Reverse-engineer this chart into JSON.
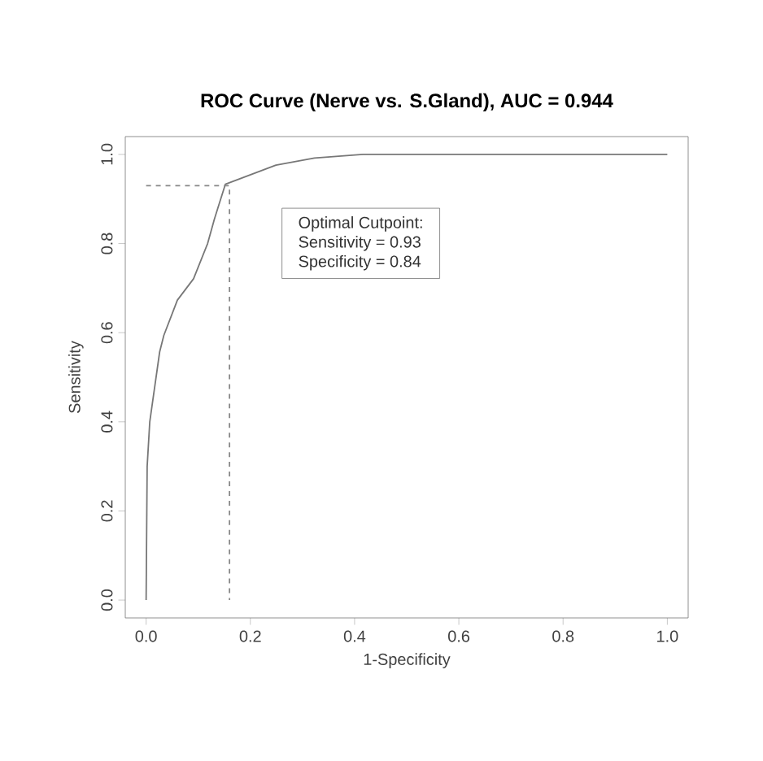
{
  "chart_data": {
    "type": "line",
    "title": "ROC Curve (Nerve vs. S.Gland), AUC = 0.944",
    "xlabel": "1-Specificity",
    "ylabel": "Sensitivity",
    "xlim": [
      -0.04,
      1.04
    ],
    "ylim": [
      -0.04,
      1.04
    ],
    "xticks": [
      {
        "value": 0,
        "label": "0.0"
      },
      {
        "value": 0.2,
        "label": "0.2"
      },
      {
        "value": 0.4,
        "label": "0.4"
      },
      {
        "value": 0.6,
        "label": "0.6"
      },
      {
        "value": 0.8,
        "label": "0.8"
      },
      {
        "value": 1,
        "label": "1.0"
      }
    ],
    "yticks": [
      {
        "value": 0,
        "label": "0.0"
      },
      {
        "value": 0.2,
        "label": "0.2"
      },
      {
        "value": 0.4,
        "label": "0.4"
      },
      {
        "value": 0.6,
        "label": "0.6"
      },
      {
        "value": 0.8,
        "label": "0.8"
      },
      {
        "value": 1,
        "label": "1.0"
      }
    ],
    "series": [
      {
        "color": "#777777",
        "line_style": "solid",
        "x": [
          0,
          0.002,
          0.007,
          0.026,
          0.034,
          0.06,
          0.091,
          0.118,
          0.131,
          0.152,
          0.249,
          0.323,
          0.416,
          1.0
        ],
        "values": [
          0,
          0.3,
          0.4,
          0.557,
          0.594,
          0.673,
          0.721,
          0.8,
          0.855,
          0.933,
          0.976,
          0.992,
          1.0,
          1.0
        ]
      },
      {
        "color": "#888888",
        "line_style": "dashed",
        "x": [
          0,
          0.16,
          0.16
        ],
        "values": [
          0.93,
          0.93,
          0
        ]
      }
    ],
    "annotations": [
      "Optimal Cutpoint:",
      "Sensitivity = 0.93",
      "Specificity = 0.84"
    ],
    "grid": false,
    "marker": "none"
  }
}
